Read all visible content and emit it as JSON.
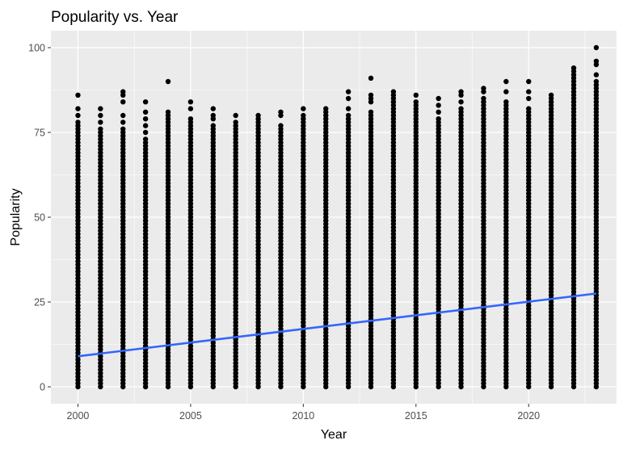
{
  "chart_data": {
    "type": "scatter",
    "title": "Popularity vs. Year",
    "xlabel": "Year",
    "ylabel": "Popularity",
    "xlim": [
      1998.8,
      2023.9
    ],
    "ylim": [
      -5,
      105
    ],
    "x_ticks": [
      2000,
      2005,
      2010,
      2015,
      2020
    ],
    "y_ticks": [
      0,
      25,
      50,
      75,
      100
    ],
    "x_tick_labels": [
      "2000",
      "2005",
      "2010",
      "2015",
      "2020"
    ],
    "y_tick_labels": [
      "0",
      "25",
      "50",
      "75",
      "100"
    ],
    "grid": true,
    "legend": "none",
    "colors": {
      "panel": "#ebebeb",
      "grid": "#ffffff",
      "points": "#000000",
      "trend": "#3366ff",
      "axis_text": "#4d4d4d",
      "title": "#000000"
    },
    "points_by_year": [
      {
        "year": 2000,
        "min": 0,
        "max": 77,
        "outliers": [
          78,
          80,
          82,
          86
        ]
      },
      {
        "year": 2001,
        "min": 0,
        "max": 76,
        "outliers": [
          78,
          80,
          82
        ]
      },
      {
        "year": 2002,
        "min": 0,
        "max": 76,
        "outliers": [
          78,
          80,
          84,
          86,
          87
        ]
      },
      {
        "year": 2003,
        "min": 0,
        "max": 73,
        "outliers": [
          75,
          77,
          79,
          81,
          84
        ]
      },
      {
        "year": 2004,
        "min": 0,
        "max": 81,
        "outliers": [
          90
        ]
      },
      {
        "year": 2005,
        "min": 0,
        "max": 79,
        "outliers": [
          82,
          84
        ]
      },
      {
        "year": 2006,
        "min": 0,
        "max": 77,
        "outliers": [
          79,
          80,
          82
        ]
      },
      {
        "year": 2007,
        "min": 0,
        "max": 78,
        "outliers": [
          80
        ]
      },
      {
        "year": 2008,
        "min": 0,
        "max": 80,
        "outliers": []
      },
      {
        "year": 2009,
        "min": 0,
        "max": 77,
        "outliers": [
          80,
          81
        ]
      },
      {
        "year": 2010,
        "min": 0,
        "max": 80,
        "outliers": [
          82
        ]
      },
      {
        "year": 2011,
        "min": 0,
        "max": 82,
        "outliers": []
      },
      {
        "year": 2012,
        "min": 0,
        "max": 80,
        "outliers": [
          82,
          85,
          87
        ]
      },
      {
        "year": 2013,
        "min": 0,
        "max": 81,
        "outliers": [
          84,
          85,
          86,
          91
        ]
      },
      {
        "year": 2014,
        "min": 0,
        "max": 87,
        "outliers": []
      },
      {
        "year": 2015,
        "min": 0,
        "max": 84,
        "outliers": [
          86
        ]
      },
      {
        "year": 2016,
        "min": 0,
        "max": 79,
        "outliers": [
          81,
          83,
          85
        ]
      },
      {
        "year": 2017,
        "min": 0,
        "max": 82,
        "outliers": [
          84,
          86,
          87
        ]
      },
      {
        "year": 2018,
        "min": 0,
        "max": 85,
        "outliers": [
          87,
          88
        ]
      },
      {
        "year": 2019,
        "min": 0,
        "max": 84,
        "outliers": [
          87,
          90
        ]
      },
      {
        "year": 2020,
        "min": 0,
        "max": 82,
        "outliers": [
          85,
          87,
          90
        ]
      },
      {
        "year": 2021,
        "min": 0,
        "max": 86,
        "outliers": []
      },
      {
        "year": 2022,
        "min": 0,
        "max": 94,
        "outliers": []
      },
      {
        "year": 2023,
        "min": 0,
        "max": 90,
        "outliers": [
          92,
          95,
          96,
          100
        ]
      }
    ],
    "trend_line": {
      "x": [
        2000,
        2023
      ],
      "y": [
        9,
        27.5
      ]
    }
  }
}
